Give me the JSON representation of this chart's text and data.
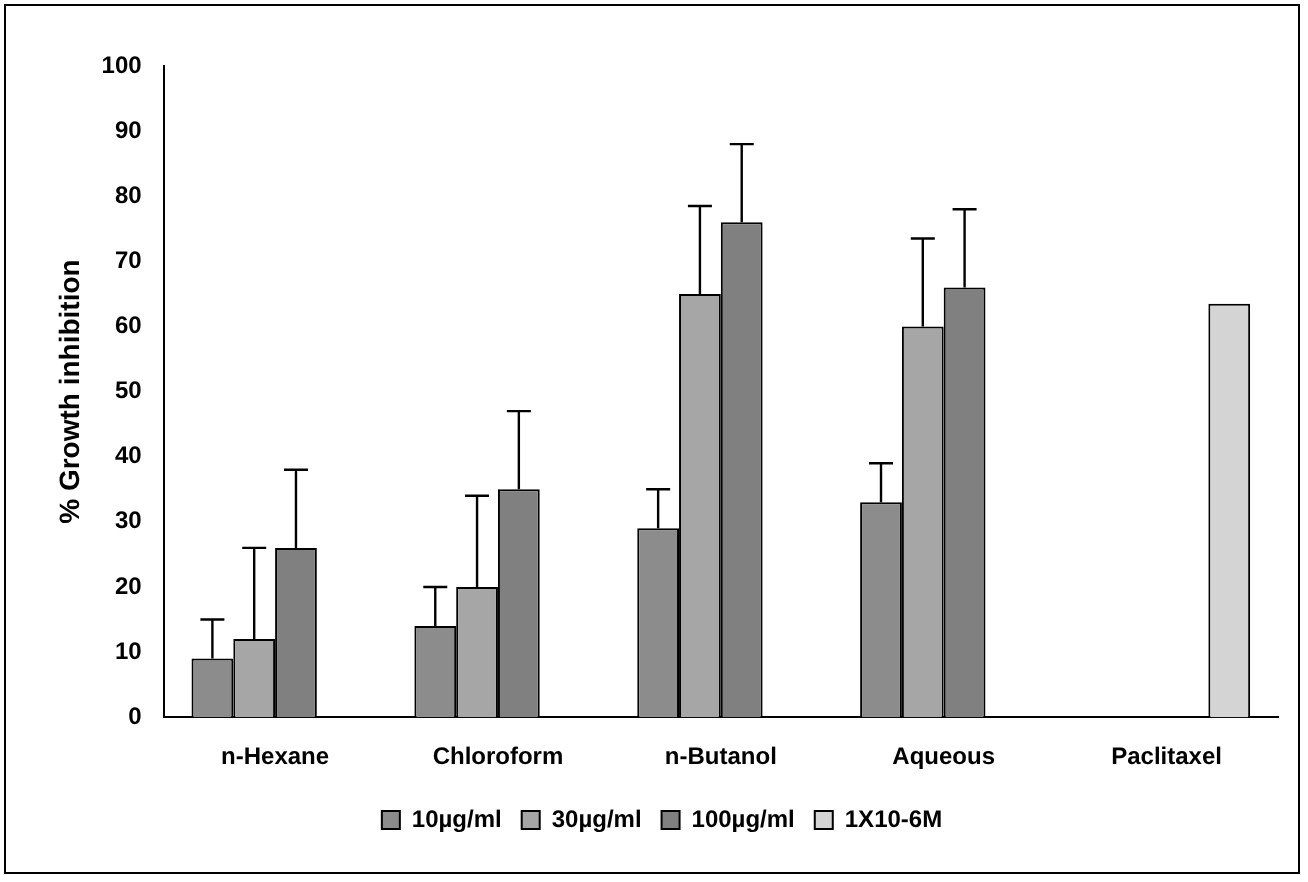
{
  "chart_data": {
    "type": "bar",
    "ylabel": "% Growth inhibition",
    "categories": [
      "n-Hexane",
      "Chloroform",
      "n-Butanol",
      "Aqueous",
      "Paclitaxel"
    ],
    "series": [
      {
        "name": "10µg/ml",
        "color": "#8c8c8c",
        "values": [
          9,
          14,
          29,
          33,
          null
        ],
        "errors": [
          [
            9,
            15
          ],
          [
            14,
            20
          ],
          [
            29,
            35
          ],
          [
            33,
            39
          ],
          null
        ]
      },
      {
        "name": "30µg/ml",
        "color": "#a6a6a6",
        "values": [
          12,
          20,
          65,
          60,
          null
        ],
        "errors": [
          [
            12,
            26
          ],
          [
            20,
            34
          ],
          [
            65,
            78.5
          ],
          [
            60,
            73.5
          ],
          null
        ]
      },
      {
        "name": "100µg/ml",
        "color": "#808080",
        "values": [
          26,
          35,
          76,
          66,
          null
        ],
        "errors": [
          [
            26,
            38
          ],
          [
            35,
            47
          ],
          [
            76,
            88
          ],
          [
            66,
            78
          ],
          null
        ]
      },
      {
        "name": "1X10-6M",
        "color": "#d4d4d4",
        "values": [
          null,
          null,
          null,
          null,
          63.5
        ]
      }
    ],
    "ylim": [
      0,
      100
    ],
    "yticks": [
      0,
      10,
      20,
      30,
      40,
      50,
      60,
      70,
      80,
      90,
      100
    ],
    "grid": false,
    "legend": "bottom"
  }
}
